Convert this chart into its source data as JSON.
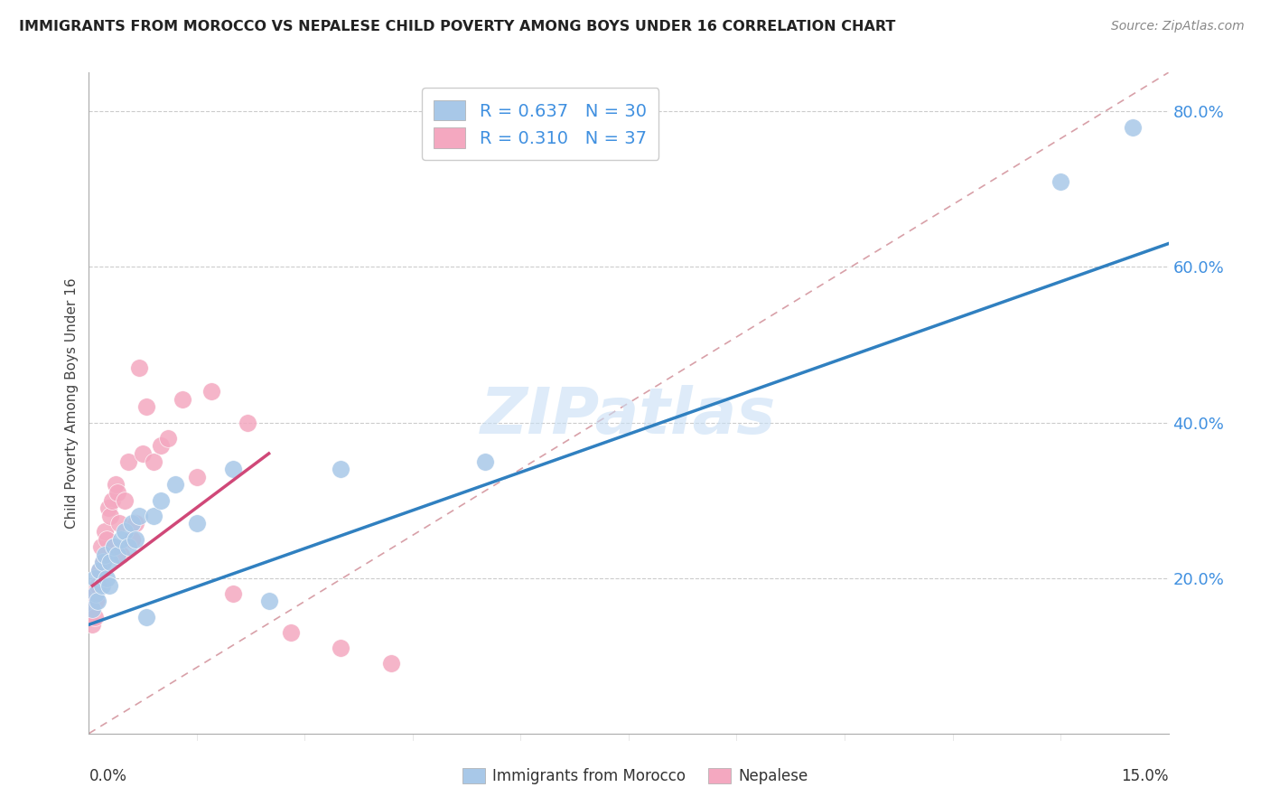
{
  "title": "IMMIGRANTS FROM MOROCCO VS NEPALESE CHILD POVERTY AMONG BOYS UNDER 16 CORRELATION CHART",
  "source": "Source: ZipAtlas.com",
  "ylabel": "Child Poverty Among Boys Under 16",
  "xlim": [
    0.0,
    15.0
  ],
  "ylim": [
    0.0,
    85.0
  ],
  "yticks_right": [
    20.0,
    40.0,
    60.0,
    80.0
  ],
  "legend_r1": "R = 0.637   N = 30",
  "legend_r2": "R = 0.310   N = 37",
  "blue_color": "#a8c8e8",
  "pink_color": "#f4a8c0",
  "blue_line_color": "#3080c0",
  "pink_line_color": "#d04878",
  "diag_color": "#d8a0a8",
  "watermark": "ZIPatlas",
  "blue_scatter_x": [
    0.05,
    0.08,
    0.1,
    0.12,
    0.15,
    0.18,
    0.2,
    0.22,
    0.25,
    0.28,
    0.3,
    0.35,
    0.4,
    0.45,
    0.5,
    0.55,
    0.6,
    0.65,
    0.7,
    0.8,
    0.9,
    1.0,
    1.2,
    1.5,
    2.0,
    2.5,
    3.5,
    5.5,
    13.5,
    14.5
  ],
  "blue_scatter_y": [
    16,
    20,
    18,
    17,
    21,
    19,
    22,
    23,
    20,
    19,
    22,
    24,
    23,
    25,
    26,
    24,
    27,
    25,
    28,
    15,
    28,
    30,
    32,
    27,
    34,
    17,
    34,
    35,
    71,
    78
  ],
  "pink_scatter_x": [
    0.03,
    0.05,
    0.07,
    0.08,
    0.1,
    0.12,
    0.15,
    0.17,
    0.2,
    0.22,
    0.25,
    0.27,
    0.3,
    0.32,
    0.35,
    0.37,
    0.4,
    0.42,
    0.45,
    0.5,
    0.55,
    0.6,
    0.65,
    0.7,
    0.75,
    0.8,
    0.9,
    1.0,
    1.1,
    1.3,
    1.5,
    1.7,
    2.0,
    2.2,
    2.8,
    3.5,
    4.2
  ],
  "pink_scatter_y": [
    16,
    14,
    18,
    15,
    17,
    19,
    21,
    24,
    22,
    26,
    25,
    29,
    28,
    30,
    24,
    32,
    31,
    27,
    23,
    30,
    35,
    25,
    27,
    47,
    36,
    42,
    35,
    37,
    38,
    43,
    33,
    44,
    18,
    40,
    13,
    11,
    9
  ],
  "blue_line_x": [
    0.0,
    15.0
  ],
  "blue_line_y": [
    14.0,
    63.0
  ],
  "pink_line_x": [
    0.05,
    2.5
  ],
  "pink_line_y": [
    19.0,
    36.0
  ],
  "diag_line_x": [
    0.0,
    15.0
  ],
  "diag_line_y": [
    0.0,
    85.0
  ]
}
